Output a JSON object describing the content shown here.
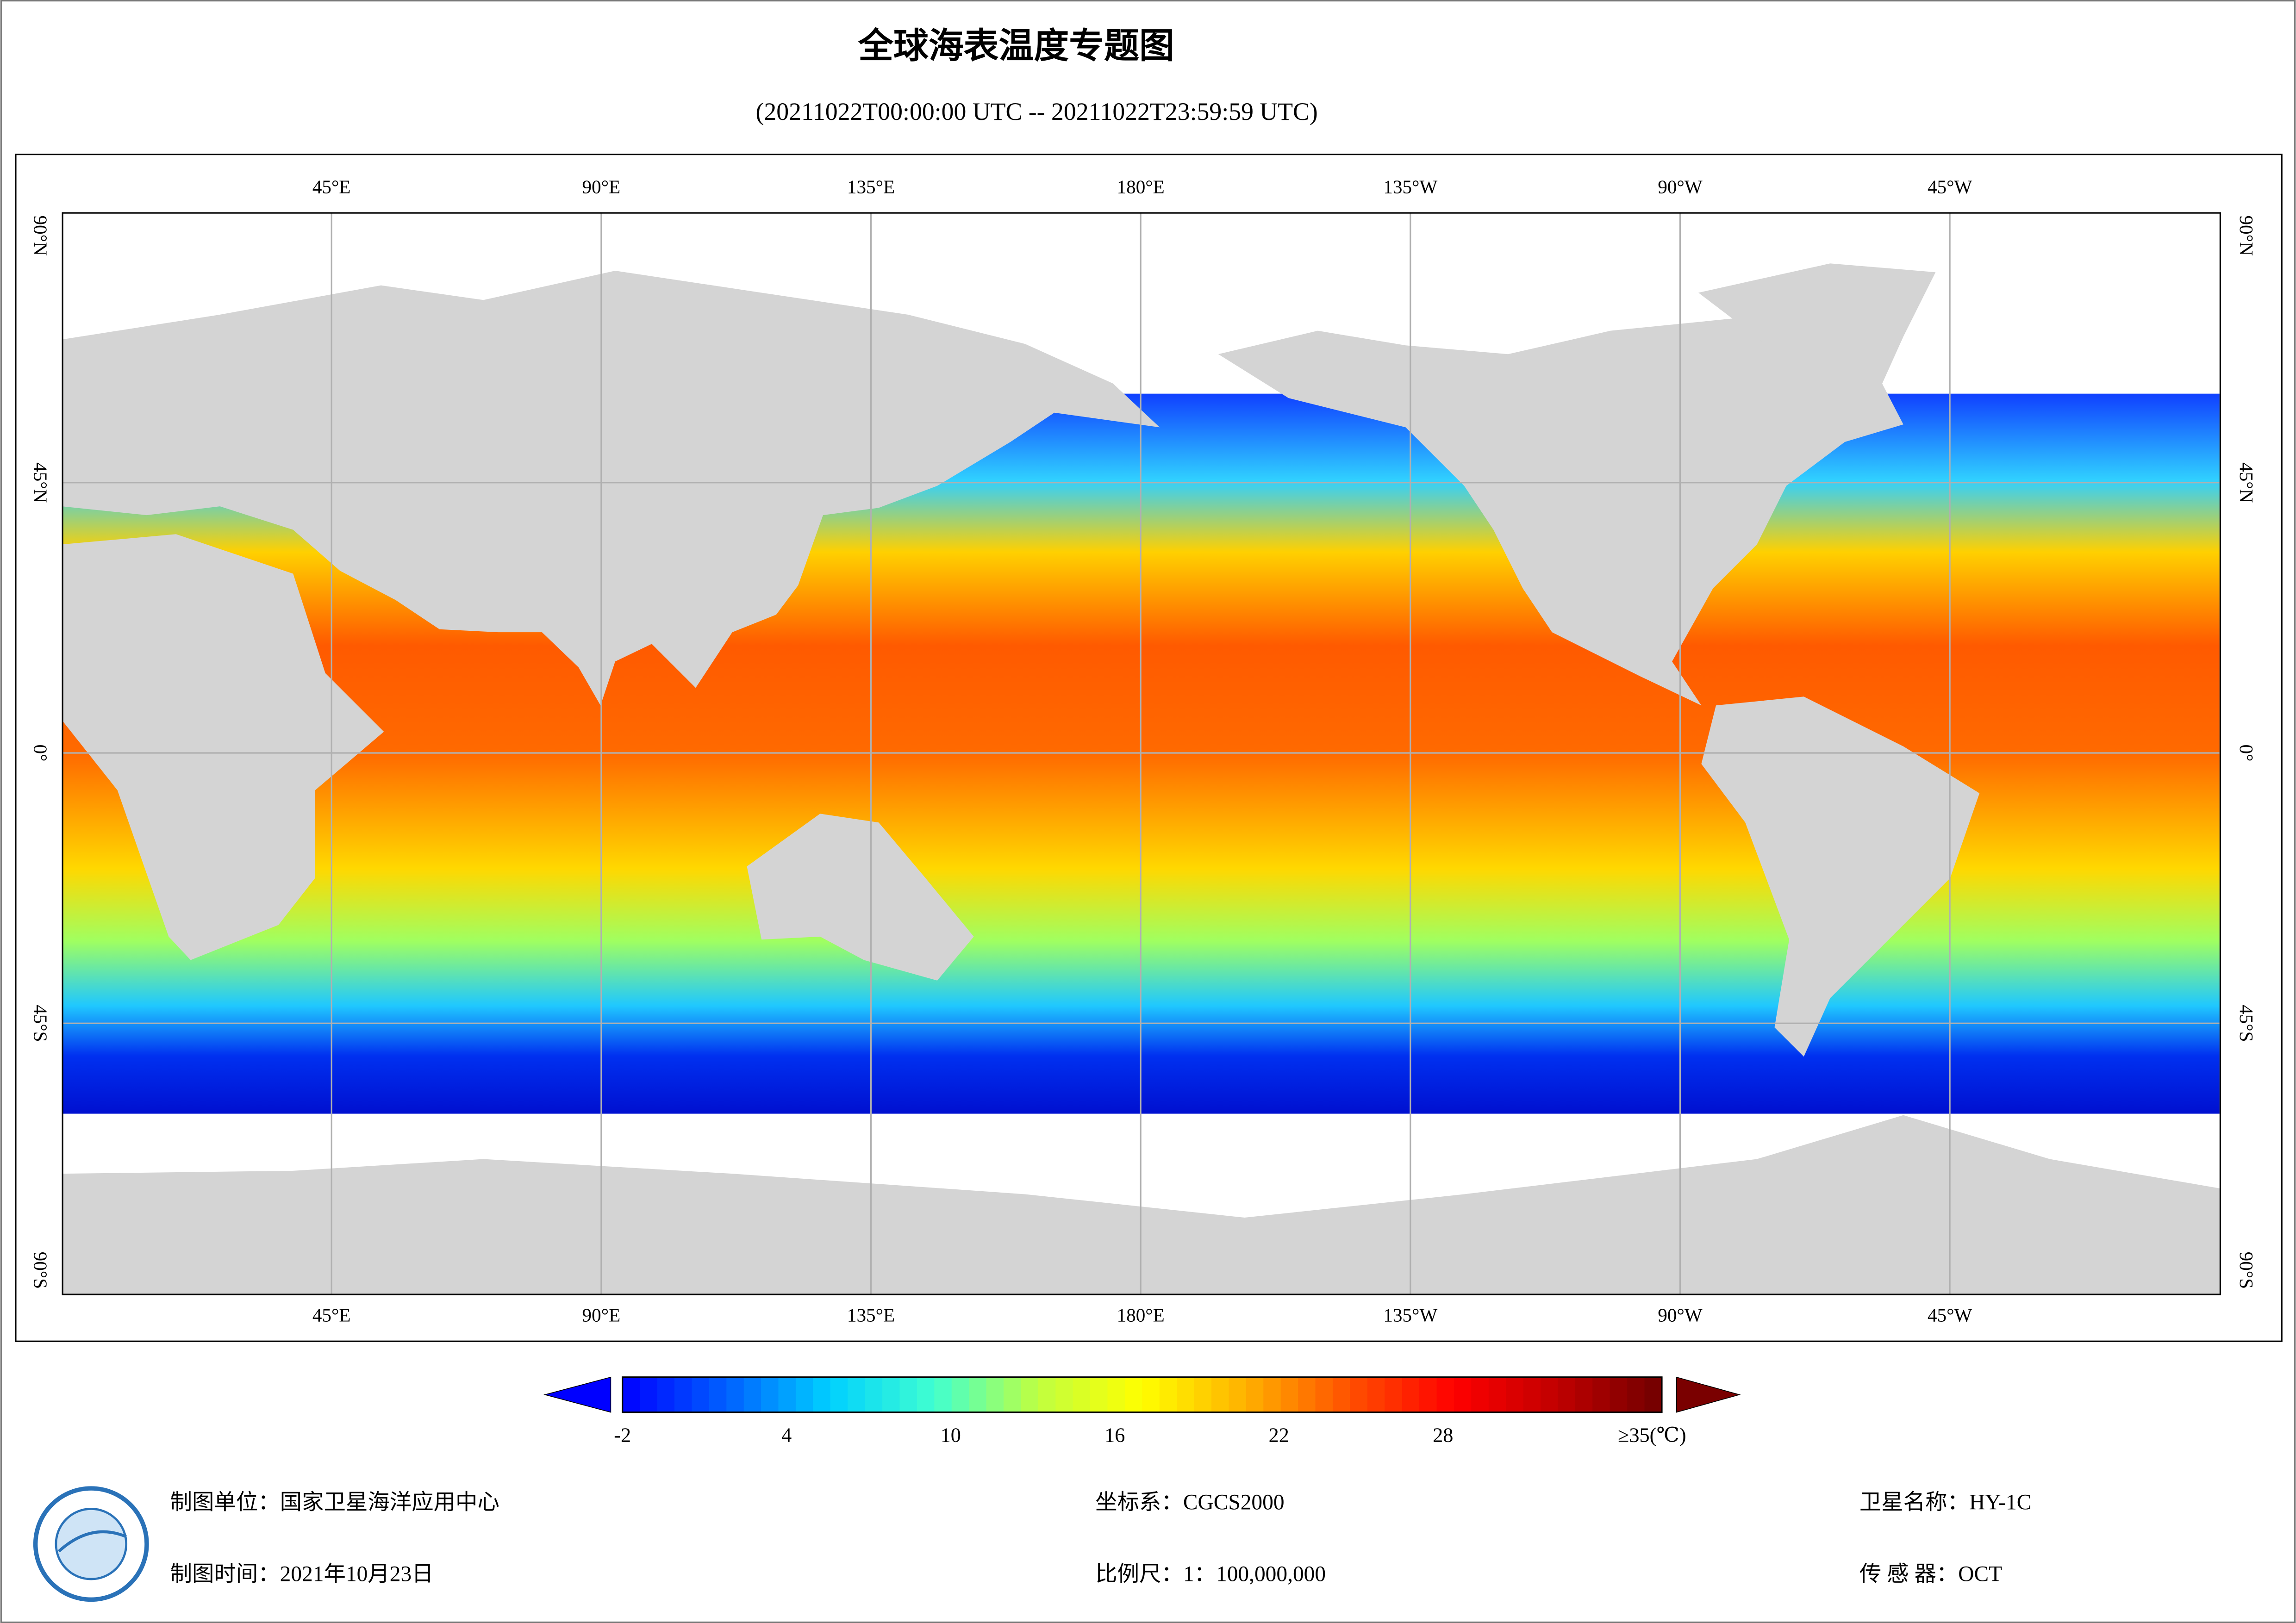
{
  "title": "全球海表温度专题图",
  "subtitle": "(20211022T00:00:00 UTC -- 20211022T23:59:59 UTC)",
  "map": {
    "lon_ticks": [
      {
        "value": 45,
        "label": "45°E"
      },
      {
        "value": 90,
        "label": "90°E"
      },
      {
        "value": 135,
        "label": "135°E"
      },
      {
        "value": 180,
        "label": "180°E"
      },
      {
        "value": 225,
        "label": "135°W"
      },
      {
        "value": 270,
        "label": "90°W"
      },
      {
        "value": 315,
        "label": "45°W"
      }
    ],
    "lat_ticks": [
      {
        "value": 90,
        "label": "90°N"
      },
      {
        "value": 45,
        "label": "45°N"
      },
      {
        "value": 0,
        "label": "0°"
      },
      {
        "value": -45,
        "label": "45°S"
      },
      {
        "value": -90,
        "label": "90°S"
      }
    ]
  },
  "colorbar": {
    "range": [
      -2,
      36
    ],
    "ticks": [
      -2,
      4,
      10,
      16,
      22,
      28
    ],
    "max_tick": {
      "value": 35,
      "label": "≥35(℃)"
    },
    "colors": [
      "#0000ff",
      "#0060ff",
      "#00d0ff",
      "#40ffd0",
      "#c0ff40",
      "#ffff00",
      "#ffb000",
      "#ff5000",
      "#ff0000",
      "#c00000",
      "#700000"
    ],
    "under_color": "#0000ff",
    "over_color": "#7a0000"
  },
  "footer": {
    "unit": "制图单位：国家卫星海洋应用中心",
    "date": "制图时间：2021年10月23日",
    "crs": "坐标系：CGCS2000",
    "scale": "比例尺：1：100,000,000",
    "satellite": "卫星名称：HY-1C",
    "sensor": "传 感 器：OCT"
  }
}
